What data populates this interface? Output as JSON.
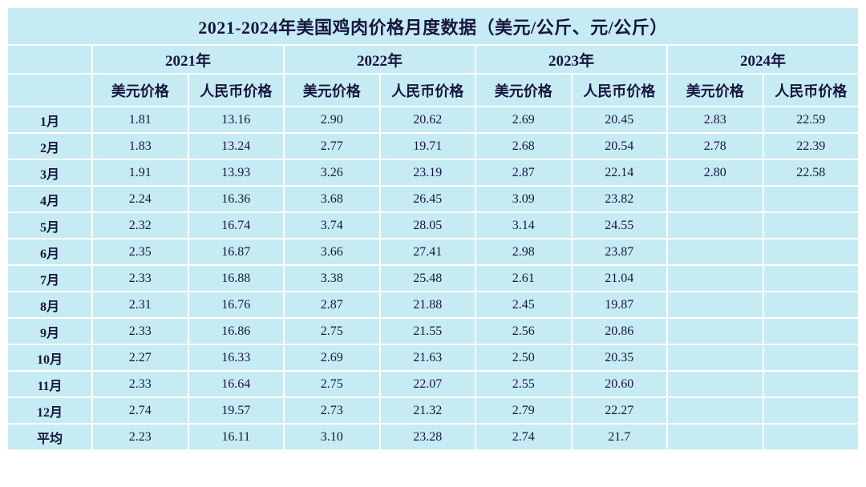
{
  "title": "2021-2024年美国鸡肉价格月度数据（美元/公斤、元/公斤）",
  "colors": {
    "table_background": "#c7ebf3",
    "grid_lines": "#ffffff",
    "title_text": "#13135c",
    "body_text": "#16163f"
  },
  "chart_data": {
    "type": "table",
    "title": "2021-2024年美国鸡肉价格月度数据（美元/公斤、元/公斤）",
    "year_groups": [
      "2021年",
      "2022年",
      "2023年",
      "2024年"
    ],
    "sub_columns": [
      "美元价格",
      "人民币价格"
    ],
    "row_label_column": "",
    "rows": [
      {
        "label": "1月",
        "values": [
          "1.81",
          "13.16",
          "2.90",
          "20.62",
          "2.69",
          "20.45",
          "2.83",
          "22.59"
        ]
      },
      {
        "label": "2月",
        "values": [
          "1.83",
          "13.24",
          "2.77",
          "19.71",
          "2.68",
          "20.54",
          "2.78",
          "22.39"
        ]
      },
      {
        "label": "3月",
        "values": [
          "1.91",
          "13.93",
          "3.26",
          "23.19",
          "2.87",
          "22.14",
          "2.80",
          "22.58"
        ]
      },
      {
        "label": "4月",
        "values": [
          "2.24",
          "16.36",
          "3.68",
          "26.45",
          "3.09",
          "23.82",
          "",
          ""
        ]
      },
      {
        "label": "5月",
        "values": [
          "2.32",
          "16.74",
          "3.74",
          "28.05",
          "3.14",
          "24.55",
          "",
          ""
        ]
      },
      {
        "label": "6月",
        "values": [
          "2.35",
          "16.87",
          "3.66",
          "27.41",
          "2.98",
          "23.87",
          "",
          ""
        ]
      },
      {
        "label": "7月",
        "values": [
          "2.33",
          "16.88",
          "3.38",
          "25.48",
          "2.61",
          "21.04",
          "",
          ""
        ]
      },
      {
        "label": "8月",
        "values": [
          "2.31",
          "16.76",
          "2.87",
          "21.88",
          "2.45",
          "19.87",
          "",
          ""
        ]
      },
      {
        "label": "9月",
        "values": [
          "2.33",
          "16.86",
          "2.75",
          "21.55",
          "2.56",
          "20.86",
          "",
          ""
        ]
      },
      {
        "label": "10月",
        "values": [
          "2.27",
          "16.33",
          "2.69",
          "21.63",
          "2.50",
          "20.35",
          "",
          ""
        ]
      },
      {
        "label": "11月",
        "values": [
          "2.33",
          "16.64",
          "2.75",
          "22.07",
          "2.55",
          "20.60",
          "",
          ""
        ]
      },
      {
        "label": "12月",
        "values": [
          "2.74",
          "19.57",
          "2.73",
          "21.32",
          "2.79",
          "22.27",
          "",
          ""
        ]
      },
      {
        "label": "平均",
        "values": [
          "2.23",
          "16.11",
          "3.10",
          "23.28",
          "2.74",
          "21.7",
          "",
          ""
        ]
      }
    ]
  }
}
